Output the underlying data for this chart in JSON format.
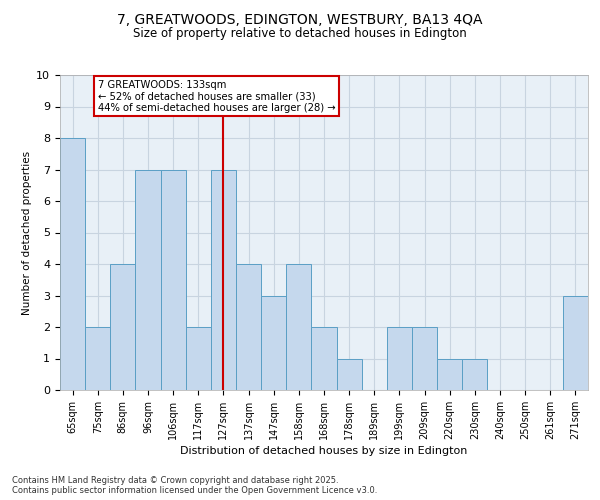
{
  "title_line1": "7, GREATWOODS, EDINGTON, WESTBURY, BA13 4QA",
  "title_line2": "Size of property relative to detached houses in Edington",
  "xlabel": "Distribution of detached houses by size in Edington",
  "ylabel": "Number of detached properties",
  "categories": [
    "65sqm",
    "75sqm",
    "86sqm",
    "96sqm",
    "106sqm",
    "117sqm",
    "127sqm",
    "137sqm",
    "147sqm",
    "158sqm",
    "168sqm",
    "178sqm",
    "189sqm",
    "199sqm",
    "209sqm",
    "220sqm",
    "230sqm",
    "240sqm",
    "250sqm",
    "261sqm",
    "271sqm"
  ],
  "values": [
    8,
    2,
    4,
    7,
    7,
    2,
    7,
    4,
    3,
    4,
    2,
    1,
    0,
    2,
    2,
    1,
    1,
    0,
    0,
    0,
    3
  ],
  "bar_color": "#c5d8ed",
  "bar_edge_color": "#5a9fc5",
  "marker_index": 6,
  "annotation_line1": "7 GREATWOODS: 133sqm",
  "annotation_line2": "← 52% of detached houses are smaller (33)",
  "annotation_line3": "44% of semi-detached houses are larger (28) →",
  "vline_color": "#cc0000",
  "annotation_box_color": "#ffffff",
  "annotation_box_edge": "#cc0000",
  "ylim": [
    0,
    10
  ],
  "yticks": [
    0,
    1,
    2,
    3,
    4,
    5,
    6,
    7,
    8,
    9,
    10
  ],
  "grid_color": "#c8d4e0",
  "bg_color": "#e8f0f7",
  "footer_line1": "Contains HM Land Registry data © Crown copyright and database right 2025.",
  "footer_line2": "Contains public sector information licensed under the Open Government Licence v3.0."
}
